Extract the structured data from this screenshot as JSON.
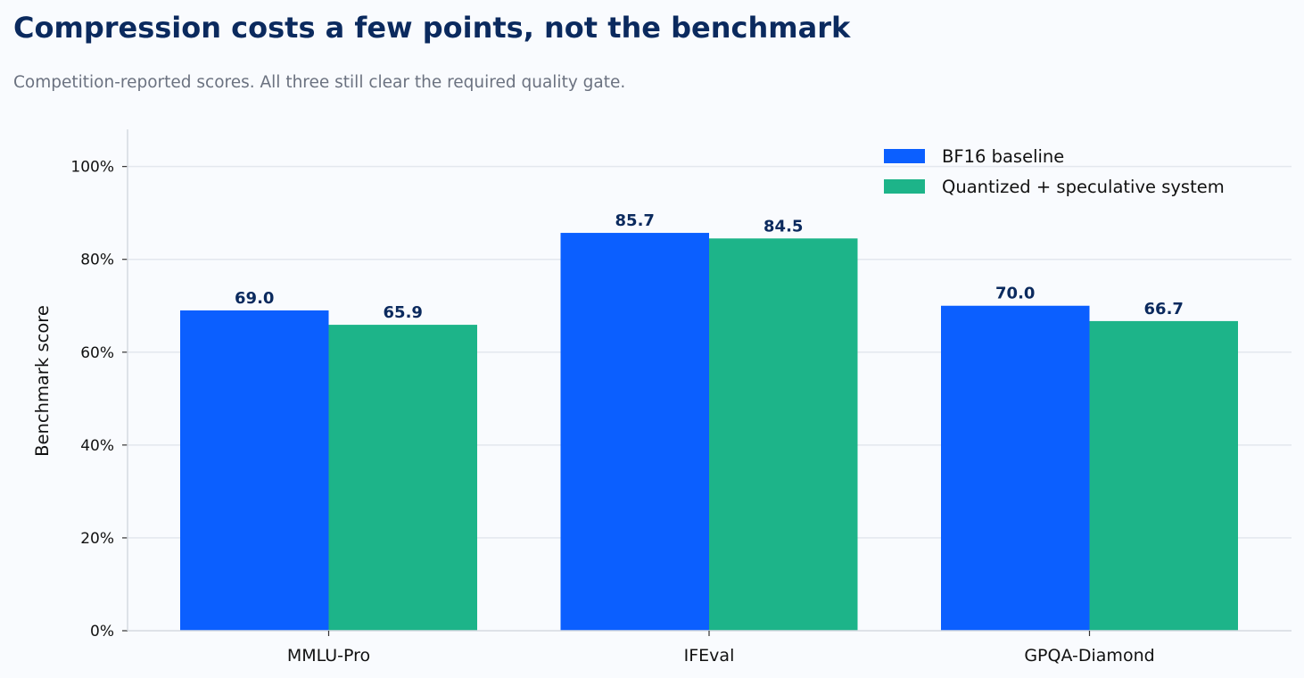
{
  "header": {
    "title": "Compression costs a few points, not the benchmark",
    "subtitle": "Competition-reported scores. All three still clear the required quality gate."
  },
  "chart_data": {
    "type": "bar",
    "title": "Compression costs a few points, not the benchmark",
    "subtitle": "Competition-reported scores. All three still clear the required quality gate.",
    "xlabel": "",
    "ylabel": "Benchmark score",
    "categories": [
      "MMLU-Pro",
      "IFEval",
      "GPQA-Diamond"
    ],
    "series": [
      {
        "name": "BF16 baseline",
        "values": [
          69.0,
          85.7,
          70.0
        ],
        "labels": [
          "69.0",
          "85.7",
          "70.0"
        ],
        "color": "#0b5fff"
      },
      {
        "name": "Quantized + speculative system",
        "values": [
          65.9,
          84.5,
          66.7
        ],
        "labels": [
          "65.9",
          "84.5",
          "66.7"
        ],
        "color": "#1db489"
      }
    ],
    "ylim": [
      0,
      108
    ],
    "yticks": [
      0,
      20,
      40,
      60,
      80,
      100
    ],
    "ytick_labels": [
      "0%",
      "20%",
      "40%",
      "60%",
      "80%",
      "100%"
    ],
    "grid": "horizontal",
    "legend_position": "top-right"
  }
}
